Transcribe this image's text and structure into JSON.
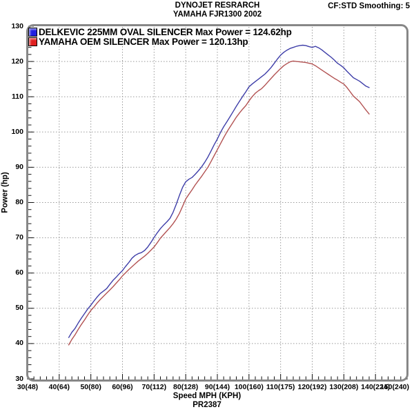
{
  "chart_data": {
    "type": "line",
    "title_line1": "DYNOJET RESRARCH",
    "title_line2": "YAMAHA FJR1300 2002",
    "annotation_top_right": "CF:STD Smoothing: 5",
    "xlabel": "Speed MPH (KPH)",
    "ylabel": "Power (hp)",
    "run_label": "PR2387",
    "xlim": [
      30,
      150
    ],
    "ylim": [
      30,
      130
    ],
    "x_minor_step": 2,
    "y_minor_step": 2,
    "grid": "dotted",
    "legend_position": "top-left",
    "x_ticks": [
      {
        "v": 30,
        "label": "30(48)"
      },
      {
        "v": 40,
        "label": "40(64)"
      },
      {
        "v": 50,
        "label": "50(80)"
      },
      {
        "v": 60,
        "label": "60(96)"
      },
      {
        "v": 70,
        "label": "70(112)"
      },
      {
        "v": 80,
        "label": "80(128)"
      },
      {
        "v": 90,
        "label": "90(144)"
      },
      {
        "v": 100,
        "label": "100(160)"
      },
      {
        "v": 110,
        "label": "110(175)"
      },
      {
        "v": 120,
        "label": "120(192)"
      },
      {
        "v": 130,
        "label": "130(208)"
      },
      {
        "v": 140,
        "label": "140(224)"
      },
      {
        "v": 150,
        "label": "150(240)"
      }
    ],
    "y_ticks": [
      {
        "v": 30,
        "label": "30"
      },
      {
        "v": 40,
        "label": "40"
      },
      {
        "v": 50,
        "label": "50"
      },
      {
        "v": 60,
        "label": "60"
      },
      {
        "v": 70,
        "label": "70"
      },
      {
        "v": 80,
        "label": "80"
      },
      {
        "v": 90,
        "label": "90"
      },
      {
        "v": 100,
        "label": "100"
      },
      {
        "v": 110,
        "label": "110"
      },
      {
        "v": 120,
        "label": "120"
      },
      {
        "v": 130,
        "label": "130"
      }
    ],
    "series": [
      {
        "name": "DELKEVIC 225MM OVAL SILENCER",
        "legend_label": "DELKEVIC 225MM OVAL SILENCER Max Power = 124.62hp",
        "max_power_hp": 124.62,
        "color": "#3d3da8",
        "swatch_color": "#2020e0",
        "points": [
          [
            43,
            41.7
          ],
          [
            44,
            43.2
          ],
          [
            45,
            44.3
          ],
          [
            46,
            45.8
          ],
          [
            47,
            47.2
          ],
          [
            48,
            48.5
          ],
          [
            49,
            49.8
          ],
          [
            50,
            50.9
          ],
          [
            51,
            52.1
          ],
          [
            52,
            53.2
          ],
          [
            53,
            54.2
          ],
          [
            54,
            54.9
          ],
          [
            55,
            55.6
          ],
          [
            56,
            56.8
          ],
          [
            57,
            57.9
          ],
          [
            58,
            58.8
          ],
          [
            59,
            59.8
          ],
          [
            60,
            60.7
          ],
          [
            61,
            61.9
          ],
          [
            62,
            63.0
          ],
          [
            63,
            64.2
          ],
          [
            64,
            65.0
          ],
          [
            65,
            65.5
          ],
          [
            66,
            65.8
          ],
          [
            67,
            66.4
          ],
          [
            68,
            67.4
          ],
          [
            69,
            68.7
          ],
          [
            70,
            70.1
          ],
          [
            71,
            71.4
          ],
          [
            72,
            72.6
          ],
          [
            73,
            73.6
          ],
          [
            74,
            74.5
          ],
          [
            75,
            75.5
          ],
          [
            76,
            77.2
          ],
          [
            77,
            79.5
          ],
          [
            78,
            82.0
          ],
          [
            79,
            84.3
          ],
          [
            80,
            85.9
          ],
          [
            81,
            86.6
          ],
          [
            82,
            87.1
          ],
          [
            83,
            88.0
          ],
          [
            84,
            89.0
          ],
          [
            85,
            90.1
          ],
          [
            86,
            91.4
          ],
          [
            87,
            92.9
          ],
          [
            88,
            94.6
          ],
          [
            89,
            96.4
          ],
          [
            90,
            98.0
          ],
          [
            91,
            99.9
          ],
          [
            92,
            101.5
          ],
          [
            93,
            102.9
          ],
          [
            94,
            104.3
          ],
          [
            95,
            105.8
          ],
          [
            96,
            107.3
          ],
          [
            97,
            108.7
          ],
          [
            98,
            110.1
          ],
          [
            99,
            111.4
          ],
          [
            100,
            112.8
          ],
          [
            101,
            113.6
          ],
          [
            102,
            114.3
          ],
          [
            103,
            115.0
          ],
          [
            104,
            115.7
          ],
          [
            105,
            116.4
          ],
          [
            106,
            117.3
          ],
          [
            107,
            118.3
          ],
          [
            108,
            119.5
          ],
          [
            109,
            120.7
          ],
          [
            110,
            121.8
          ],
          [
            111,
            122.6
          ],
          [
            112,
            123.2
          ],
          [
            113,
            123.7
          ],
          [
            114,
            124.0
          ],
          [
            115,
            124.3
          ],
          [
            116,
            124.5
          ],
          [
            117,
            124.62
          ],
          [
            118,
            124.5
          ],
          [
            119,
            124.2
          ],
          [
            120,
            124.0
          ],
          [
            121,
            124.3
          ],
          [
            122,
            123.9
          ],
          [
            123,
            123.3
          ],
          [
            124,
            122.6
          ],
          [
            125,
            121.9
          ],
          [
            126,
            121.2
          ],
          [
            127,
            120.4
          ],
          [
            128,
            119.5
          ],
          [
            129,
            118.9
          ],
          [
            130,
            118.2
          ],
          [
            131,
            117.2
          ],
          [
            132,
            116.3
          ],
          [
            133,
            115.4
          ],
          [
            134,
            114.9
          ],
          [
            135,
            114.4
          ],
          [
            136,
            113.7
          ],
          [
            137,
            113.0
          ],
          [
            138,
            112.6
          ]
        ]
      },
      {
        "name": "YAMAHA OEM SILENCER",
        "legend_label": "YAMAHA OEM SILENCER Max Power = 120.13hp",
        "max_power_hp": 120.13,
        "color": "#b25252",
        "swatch_color": "#e02020",
        "points": [
          [
            43,
            39.6
          ],
          [
            44,
            41.2
          ],
          [
            45,
            42.5
          ],
          [
            46,
            44.0
          ],
          [
            47,
            45.4
          ],
          [
            48,
            46.7
          ],
          [
            49,
            48.1
          ],
          [
            50,
            49.4
          ],
          [
            51,
            50.4
          ],
          [
            52,
            51.5
          ],
          [
            53,
            52.5
          ],
          [
            54,
            53.4
          ],
          [
            55,
            54.3
          ],
          [
            56,
            55.2
          ],
          [
            57,
            56.1
          ],
          [
            58,
            57.1
          ],
          [
            59,
            58.1
          ],
          [
            60,
            59.2
          ],
          [
            61,
            60.1
          ],
          [
            62,
            61.0
          ],
          [
            63,
            61.8
          ],
          [
            64,
            62.6
          ],
          [
            65,
            63.4
          ],
          [
            66,
            64.1
          ],
          [
            67,
            64.8
          ],
          [
            68,
            65.6
          ],
          [
            69,
            66.5
          ],
          [
            70,
            67.4
          ],
          [
            71,
            68.6
          ],
          [
            72,
            69.9
          ],
          [
            73,
            70.9
          ],
          [
            74,
            71.9
          ],
          [
            75,
            72.9
          ],
          [
            76,
            74.0
          ],
          [
            77,
            75.3
          ],
          [
            78,
            76.9
          ],
          [
            79,
            78.9
          ],
          [
            80,
            81.0
          ],
          [
            81,
            82.3
          ],
          [
            82,
            83.6
          ],
          [
            83,
            85.0
          ],
          [
            84,
            86.2
          ],
          [
            85,
            87.4
          ],
          [
            86,
            88.7
          ],
          [
            87,
            90.0
          ],
          [
            88,
            91.6
          ],
          [
            89,
            93.3
          ],
          [
            90,
            95.0
          ],
          [
            91,
            96.7
          ],
          [
            92,
            98.4
          ],
          [
            93,
            100.0
          ],
          [
            94,
            101.4
          ],
          [
            95,
            102.8
          ],
          [
            96,
            104.2
          ],
          [
            97,
            105.4
          ],
          [
            98,
            106.5
          ],
          [
            99,
            107.5
          ],
          [
            100,
            108.8
          ],
          [
            101,
            110.0
          ],
          [
            102,
            111.0
          ],
          [
            103,
            111.7
          ],
          [
            104,
            112.3
          ],
          [
            105,
            113.2
          ],
          [
            106,
            114.2
          ],
          [
            107,
            115.2
          ],
          [
            108,
            116.2
          ],
          [
            109,
            117.1
          ],
          [
            110,
            118.0
          ],
          [
            111,
            118.8
          ],
          [
            112,
            119.4
          ],
          [
            113,
            119.9
          ],
          [
            114,
            120.13
          ],
          [
            115,
            120.0
          ],
          [
            116,
            119.9
          ],
          [
            117,
            119.8
          ],
          [
            118,
            119.7
          ],
          [
            119,
            119.5
          ],
          [
            120,
            119.3
          ],
          [
            121,
            118.8
          ],
          [
            122,
            118.2
          ],
          [
            123,
            117.6
          ],
          [
            124,
            117.0
          ],
          [
            125,
            116.4
          ],
          [
            126,
            115.8
          ],
          [
            127,
            115.2
          ],
          [
            128,
            114.7
          ],
          [
            129,
            114.1
          ],
          [
            130,
            113.6
          ],
          [
            131,
            112.6
          ],
          [
            132,
            111.4
          ],
          [
            133,
            110.2
          ],
          [
            134,
            109.4
          ],
          [
            135,
            108.6
          ],
          [
            136,
            107.4
          ],
          [
            137,
            106.2
          ],
          [
            138,
            105.1
          ]
        ]
      }
    ]
  },
  "colors": {
    "grid": "#999999",
    "frame": "#878787",
    "tick": "#111111",
    "text": "#000000",
    "background": "#ffffff"
  }
}
